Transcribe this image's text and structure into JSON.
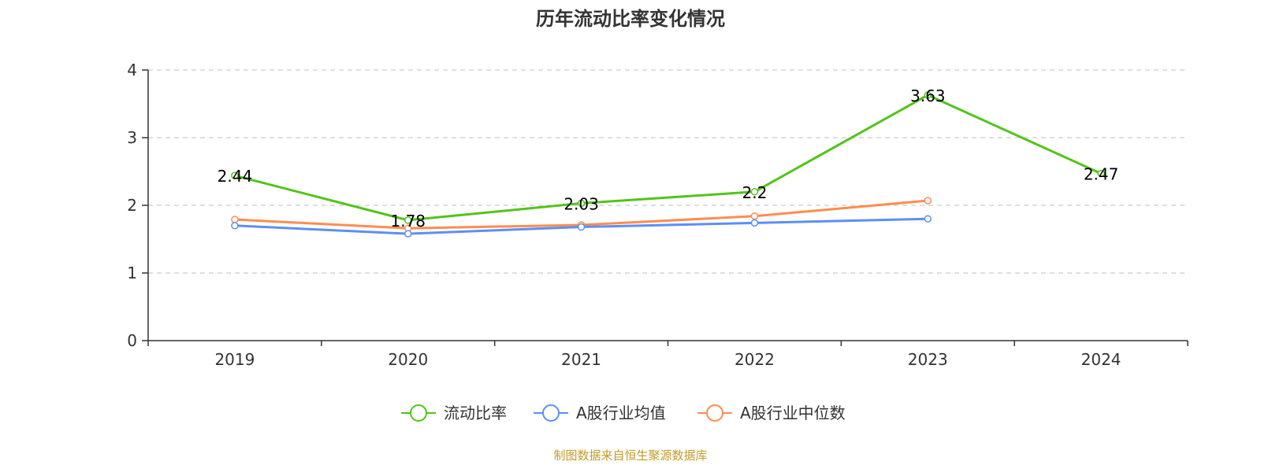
{
  "chart_data": {
    "type": "line",
    "title": "历年流动比率变化情况",
    "categories": [
      "2019",
      "2020",
      "2021",
      "2022",
      "2023",
      "2024"
    ],
    "ylim": [
      0,
      4
    ],
    "yticks": [
      0,
      1,
      2,
      3,
      4
    ],
    "grid": true,
    "legend_position": "bottom",
    "series": [
      {
        "name": "流动比率",
        "color": "#52c41a",
        "values": [
          2.44,
          1.78,
          2.03,
          2.2,
          3.63,
          2.47
        ],
        "labels": [
          "2.44",
          "1.78",
          "2.03",
          "2.2",
          "3.63",
          "2.47"
        ]
      },
      {
        "name": "A股行业均值",
        "color": "#5b8ff9",
        "values": [
          1.7,
          1.58,
          1.68,
          1.74,
          1.8,
          null
        ]
      },
      {
        "name": "A股行业中位数",
        "color": "#ff8c50",
        "values": [
          1.79,
          1.66,
          1.71,
          1.84,
          2.07,
          null
        ]
      }
    ]
  },
  "source_text": "制图数据来自恒生聚源数据库",
  "source_color": "#c59a2a"
}
